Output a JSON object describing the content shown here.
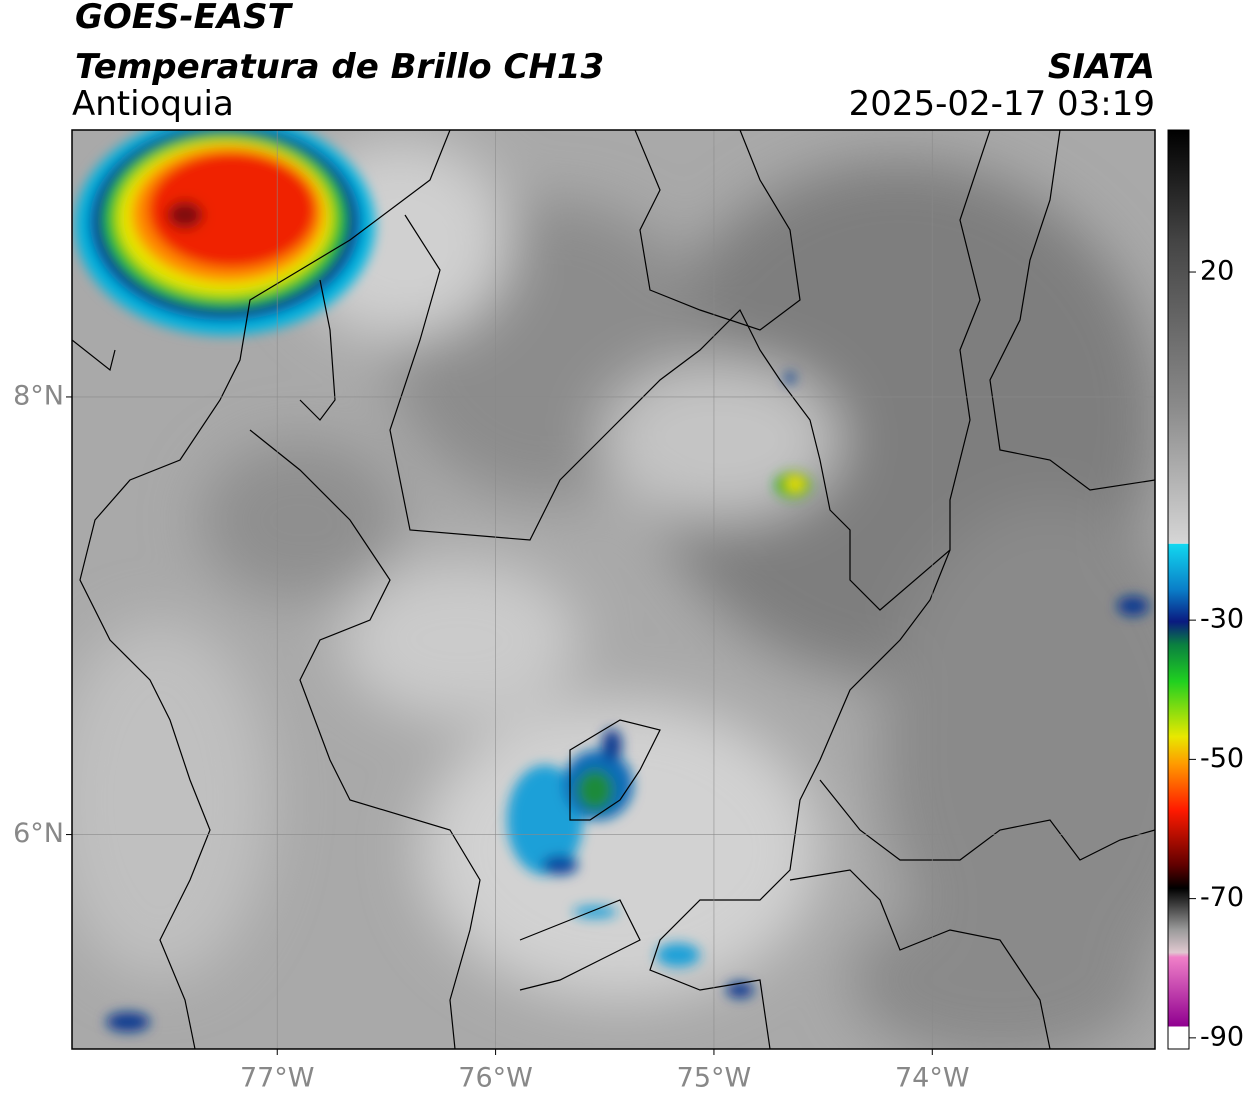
{
  "header": {
    "title": "GOES-EAST",
    "subtitle": "Temperatura de Brillo CH13",
    "region": "Antioquia",
    "source": "SIATA",
    "datetime": "2025-02-17 03:19"
  },
  "map": {
    "xlim": [
      -77.94,
      -72.98
    ],
    "ylim": [
      5.02,
      9.22
    ],
    "xticks": [
      {
        "value": -77,
        "label": "77°W"
      },
      {
        "value": -76,
        "label": "76°W"
      },
      {
        "value": -75,
        "label": "75°W"
      },
      {
        "value": -74,
        "label": "74°W"
      }
    ],
    "yticks": [
      {
        "value": 8,
        "label": "8°N"
      },
      {
        "value": 6,
        "label": "6°N"
      }
    ],
    "grid": true
  },
  "colorbar": {
    "lim": [
      -91.6,
      40.4
    ],
    "ticks": [
      20,
      -30,
      -50,
      -70,
      -90
    ]
  }
}
